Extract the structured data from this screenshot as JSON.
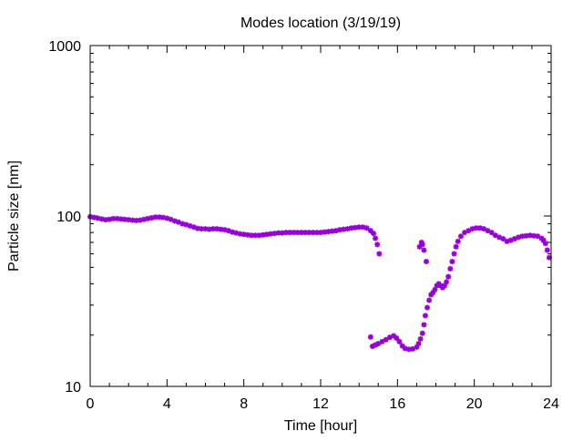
{
  "chart_data": {
    "type": "scatter",
    "title": "Modes location (3/19/19)",
    "xlabel": "Time [hour]",
    "ylabel": "Particle size [nm]",
    "xlim": [
      0,
      24
    ],
    "ylim": [
      10,
      1000
    ],
    "yscale": "log",
    "x_ticks": [
      0,
      4,
      8,
      12,
      16,
      20,
      24
    ],
    "x_tick_labels": [
      "0",
      "4",
      "8",
      "12",
      "16",
      "20",
      "24"
    ],
    "y_ticks": [
      10,
      100,
      1000
    ],
    "y_tick_labels": [
      "10",
      "100",
      "1000"
    ],
    "grid": false,
    "marker": "star",
    "color": "#9400d3",
    "series": [
      {
        "points": [
          [
            0.0,
            99
          ],
          [
            0.2,
            98
          ],
          [
            0.4,
            97
          ],
          [
            0.6,
            96
          ],
          [
            0.8,
            95
          ],
          [
            1.0,
            95.5
          ],
          [
            1.2,
            96.5
          ],
          [
            1.4,
            96.5
          ],
          [
            1.6,
            96
          ],
          [
            1.8,
            95.5
          ],
          [
            2.0,
            95
          ],
          [
            2.2,
            94.5
          ],
          [
            2.4,
            94
          ],
          [
            2.6,
            94.5
          ],
          [
            2.8,
            95.5
          ],
          [
            3.0,
            96.5
          ],
          [
            3.2,
            97.5
          ],
          [
            3.4,
            98.5
          ],
          [
            3.6,
            98.5
          ],
          [
            3.8,
            98
          ],
          [
            4.0,
            97
          ],
          [
            4.2,
            95.5
          ],
          [
            4.4,
            93.5
          ],
          [
            4.6,
            92
          ],
          [
            4.8,
            90
          ],
          [
            5.0,
            89
          ],
          [
            5.2,
            87.5
          ],
          [
            5.4,
            86
          ],
          [
            5.6,
            84.5
          ],
          [
            5.8,
            84
          ],
          [
            6.0,
            84
          ],
          [
            6.2,
            83.5
          ],
          [
            6.4,
            84
          ],
          [
            6.6,
            84
          ],
          [
            6.8,
            83.5
          ],
          [
            7.0,
            83
          ],
          [
            7.2,
            82
          ],
          [
            7.4,
            80.5
          ],
          [
            7.6,
            79.5
          ],
          [
            7.8,
            78.5
          ],
          [
            8.0,
            78
          ],
          [
            8.2,
            77.5
          ],
          [
            8.4,
            77
          ],
          [
            8.6,
            77
          ],
          [
            8.8,
            77
          ],
          [
            9.0,
            77.5
          ],
          [
            9.2,
            78
          ],
          [
            9.4,
            78.5
          ],
          [
            9.6,
            79
          ],
          [
            9.8,
            79.5
          ],
          [
            10.0,
            79.5
          ],
          [
            10.2,
            80
          ],
          [
            10.4,
            80
          ],
          [
            10.6,
            80
          ],
          [
            10.8,
            80
          ],
          [
            11.0,
            80
          ],
          [
            11.2,
            80
          ],
          [
            11.4,
            80
          ],
          [
            11.6,
            80
          ],
          [
            11.8,
            80
          ],
          [
            12.0,
            80
          ],
          [
            12.2,
            80.5
          ],
          [
            12.4,
            81
          ],
          [
            12.6,
            81.5
          ],
          [
            12.8,
            82
          ],
          [
            13.0,
            83
          ],
          [
            13.2,
            83.5
          ],
          [
            13.4,
            84
          ],
          [
            13.6,
            85
          ],
          [
            13.8,
            85.5
          ],
          [
            14.0,
            86
          ],
          [
            14.2,
            86
          ],
          [
            14.4,
            85
          ],
          [
            14.6,
            82
          ],
          [
            14.75,
            79
          ],
          [
            14.85,
            74
          ],
          [
            14.95,
            68
          ],
          [
            15.05,
            60
          ],
          [
            14.6,
            19.5
          ],
          [
            14.7,
            17.2
          ],
          [
            14.85,
            17.5
          ],
          [
            15.0,
            17.8
          ],
          [
            15.2,
            18.3
          ],
          [
            15.4,
            18.8
          ],
          [
            15.6,
            19.4
          ],
          [
            15.8,
            19.8
          ],
          [
            15.95,
            19.2
          ],
          [
            16.1,
            18.3
          ],
          [
            16.25,
            17.3
          ],
          [
            16.4,
            16.7
          ],
          [
            16.6,
            16.5
          ],
          [
            16.8,
            16.6
          ],
          [
            17.0,
            17
          ],
          [
            17.1,
            17.8
          ],
          [
            17.2,
            19
          ],
          [
            17.3,
            20.5
          ],
          [
            17.38,
            23
          ],
          [
            17.45,
            26
          ],
          [
            17.55,
            29
          ],
          [
            17.65,
            32
          ],
          [
            17.75,
            34.5
          ],
          [
            17.85,
            35.5
          ],
          [
            17.95,
            37
          ],
          [
            18.05,
            39
          ],
          [
            18.15,
            40
          ],
          [
            18.25,
            39
          ],
          [
            18.35,
            38
          ],
          [
            18.45,
            39
          ],
          [
            18.55,
            41
          ],
          [
            18.65,
            44
          ],
          [
            18.75,
            49
          ],
          [
            18.85,
            54
          ],
          [
            18.95,
            60
          ],
          [
            19.05,
            66
          ],
          [
            19.15,
            71
          ],
          [
            19.3,
            76
          ],
          [
            19.5,
            80
          ],
          [
            19.7,
            82
          ],
          [
            19.9,
            84
          ],
          [
            20.1,
            85
          ],
          [
            20.3,
            85
          ],
          [
            20.5,
            84
          ],
          [
            20.7,
            82
          ],
          [
            20.9,
            80
          ],
          [
            21.1,
            77
          ],
          [
            21.3,
            75
          ],
          [
            21.5,
            73.5
          ],
          [
            21.7,
            71
          ],
          [
            21.9,
            72
          ],
          [
            22.1,
            73.5
          ],
          [
            22.3,
            75
          ],
          [
            22.5,
            76
          ],
          [
            22.7,
            76.5
          ],
          [
            22.9,
            77
          ],
          [
            23.1,
            76.5
          ],
          [
            23.3,
            76
          ],
          [
            23.5,
            74
          ],
          [
            23.6,
            72
          ],
          [
            23.7,
            69
          ],
          [
            23.8,
            63
          ],
          [
            23.9,
            57
          ],
          [
            17.15,
            66
          ],
          [
            17.25,
            70
          ],
          [
            17.3,
            68
          ],
          [
            17.38,
            63
          ],
          [
            17.5,
            54
          ]
        ]
      }
    ]
  }
}
